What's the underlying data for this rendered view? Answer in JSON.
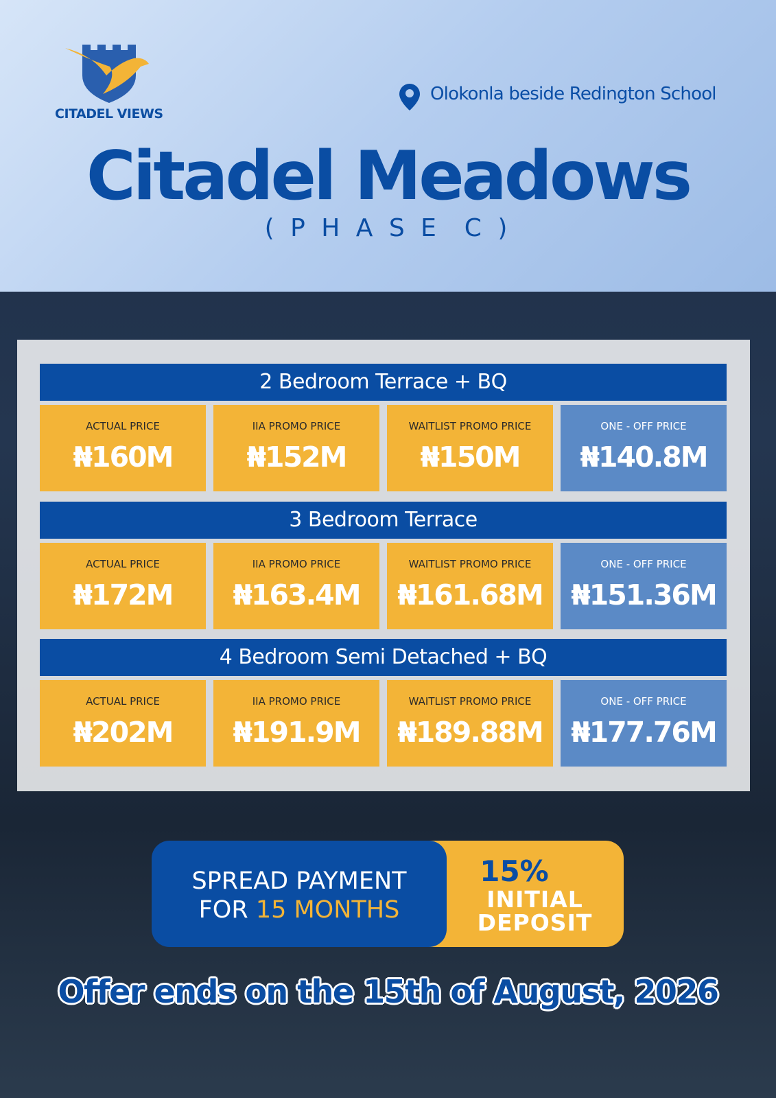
{
  "logo": {
    "name": "CITADEL VIEWS"
  },
  "header": {
    "location": "Olokonla beside Redington School",
    "title": "Citadel Meadows",
    "subtitle": "( P H A S E  C )"
  },
  "listings": [
    {
      "name": "2 Bedroom Terrace + BQ",
      "prices": [
        {
          "label": "ACTUAL PRICE",
          "value": "₦160M"
        },
        {
          "label": "IIA PROMO PRICE",
          "value": "₦152M"
        },
        {
          "label": "WAITLIST PROMO PRICE",
          "value": "₦150M"
        },
        {
          "label": "ONE - OFF PRICE",
          "value": "₦140.8M"
        }
      ]
    },
    {
      "name": "3 Bedroom Terrace",
      "prices": [
        {
          "label": "ACTUAL PRICE",
          "value": "₦172M"
        },
        {
          "label": "IIA PROMO PRICE",
          "value": "₦163.4M"
        },
        {
          "label": "WAITLIST PROMO PRICE",
          "value": "₦161.68M"
        },
        {
          "label": "ONE - OFF PRICE",
          "value": "₦151.36M"
        }
      ]
    },
    {
      "name": "4 Bedroom Semi Detached + BQ",
      "prices": [
        {
          "label": "ACTUAL PRICE",
          "value": "₦202M"
        },
        {
          "label": "IIA PROMO PRICE",
          "value": "₦191.9M"
        },
        {
          "label": "WAITLIST PROMO PRICE",
          "value": "₦189.88M"
        },
        {
          "label": "ONE - OFF PRICE",
          "value": "₦177.76M"
        }
      ]
    }
  ],
  "banner": {
    "line1": "SPREAD PAYMENT",
    "line2_prefix": "FOR",
    "line2_highlight": "15 MONTHS",
    "deposit_percent": "15%",
    "deposit_line1": "INITIAL",
    "deposit_line2": "DEPOSIT"
  },
  "footer": {
    "offer": "Offer ends on the 15th of August, 2026"
  }
}
